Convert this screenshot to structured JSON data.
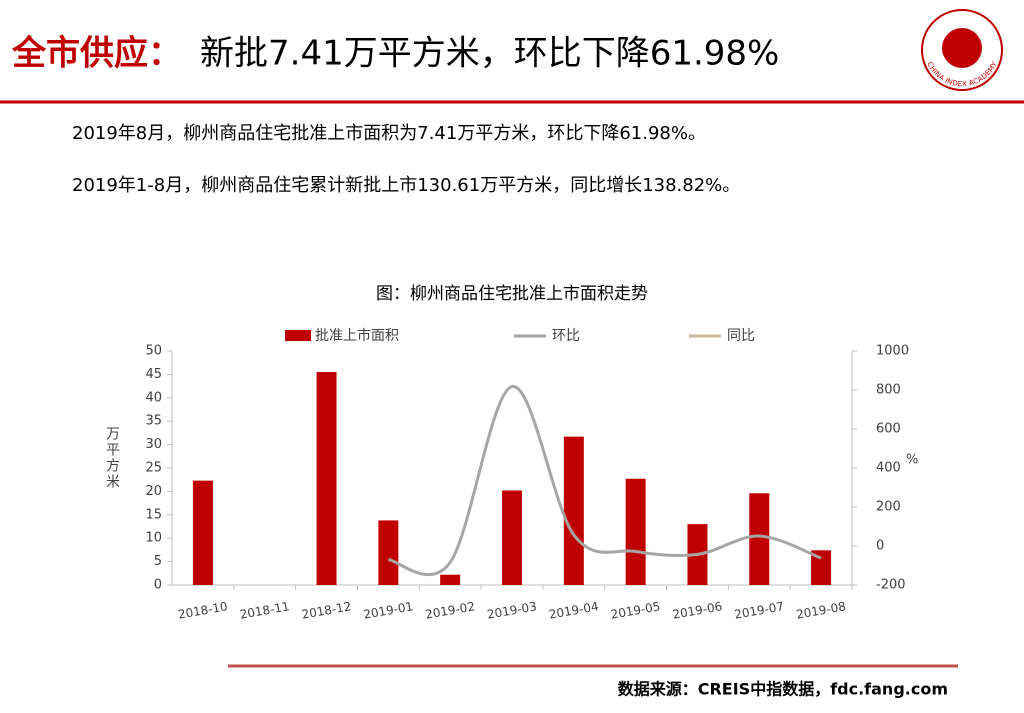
{
  "header": {
    "title_lead": "全市供应：",
    "title_main": "新批7.41万平方米，环比下降61.98%",
    "logo_text": "CHINA INDEX ACADEMY"
  },
  "paragraphs": [
    "2019年8月，柳州商品住宅批准上市面积为7.41万平方米，环比下降61.98%。",
    "2019年1-8月，柳州商品住宅累计新批上市130.61万平方米，同比增长138.82%。"
  ],
  "chart_data": {
    "type": "bar_line",
    "title": "图：柳州商品住宅批准上市面积走势",
    "ylabel": "万平方米",
    "y2label": "%",
    "categories": [
      "2018-10",
      "2018-11",
      "2018-12",
      "2019-01",
      "2019-02",
      "2019-03",
      "2019-04",
      "2019-05",
      "2019-06",
      "2019-07",
      "2019-08"
    ],
    "series": [
      {
        "name": "批准上市面积",
        "color": "#c00000",
        "kind": "bar",
        "values": [
          22.3,
          null,
          45.5,
          13.8,
          2.2,
          20.2,
          31.7,
          22.7,
          13.0,
          19.6,
          7.41
        ]
      },
      {
        "name": "环比",
        "color": "#a6a6a6",
        "kind": "line",
        "axis": "y2",
        "values": [
          null,
          null,
          null,
          -70,
          -84,
          818,
          57,
          -28,
          -43,
          51,
          -61.98
        ]
      },
      {
        "name": "同比",
        "color": "#c4bd97",
        "kind": "line",
        "axis": "y2",
        "values": [
          null,
          null,
          null,
          null,
          null,
          null,
          null,
          null,
          null,
          null,
          null
        ]
      }
    ],
    "ylim": [
      0,
      50
    ],
    "yticks": [
      0,
      5,
      10,
      15,
      20,
      25,
      30,
      35,
      40,
      45,
      50
    ],
    "y2lim": [
      -200,
      1000
    ],
    "y2ticks": [
      -200,
      0,
      200,
      400,
      600,
      800,
      1000
    ]
  },
  "footer": {
    "source": "数据来源：CREIS中指数据，fdc.fang.com"
  }
}
